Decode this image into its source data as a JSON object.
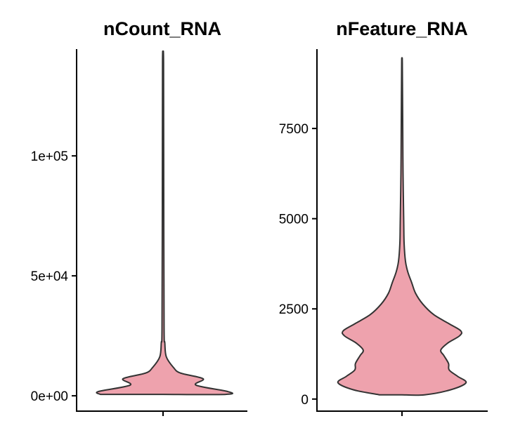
{
  "chart_data": [
    {
      "type": "violin",
      "title": "nCount_RNA",
      "xlabel": "",
      "ylabel": "",
      "fill_color": "#EEA2AD",
      "stroke_color": "#333333",
      "yticks": [
        0,
        50000,
        100000
      ],
      "ytick_labels": [
        "0e+00",
        "5e+04",
        "1e+05"
      ],
      "ylim": [
        -6400,
        144500
      ],
      "density_profile": [
        [
          592,
          0.97
        ],
        [
          1775,
          1.0
        ],
        [
          4438,
          0.51
        ],
        [
          7101,
          0.62
        ],
        [
          9467,
          0.27
        ],
        [
          11834,
          0.16
        ],
        [
          16273,
          0.05
        ],
        [
          22192,
          0.027
        ],
        [
          28110,
          0.016
        ],
        [
          78400,
          0.011
        ],
        [
          139070,
          0.008
        ]
      ]
    },
    {
      "type": "violin",
      "title": "nFeature_RNA",
      "xlabel": "",
      "ylabel": "",
      "fill_color": "#EEA2AD",
      "stroke_color": "#333333",
      "yticks": [
        0,
        2500,
        5000,
        7500
      ],
      "ytick_labels": [
        "0",
        "2500",
        "5000",
        "7500"
      ],
      "ylim": [
        -335,
        9700
      ],
      "density_profile": [
        [
          118,
          0.35
        ],
        [
          256,
          0.75
        ],
        [
          453,
          0.99
        ],
        [
          630,
          0.86
        ],
        [
          807,
          0.73
        ],
        [
          984,
          0.72
        ],
        [
          1200,
          0.65
        ],
        [
          1358,
          0.6
        ],
        [
          1555,
          0.71
        ],
        [
          1752,
          0.89
        ],
        [
          1890,
          0.91
        ],
        [
          2086,
          0.73
        ],
        [
          2342,
          0.49
        ],
        [
          2637,
          0.32
        ],
        [
          2932,
          0.21
        ],
        [
          3228,
          0.15
        ],
        [
          3523,
          0.09
        ],
        [
          3818,
          0.054
        ],
        [
          4310,
          0.033
        ],
        [
          4900,
          0.027
        ],
        [
          6278,
          0.016
        ],
        [
          7655,
          0.011
        ],
        [
          9328,
          0.005
        ]
      ]
    }
  ]
}
